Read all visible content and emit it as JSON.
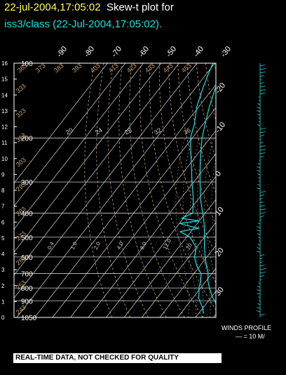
{
  "header": {
    "timestamp": "22-jul-2004,17:05:02",
    "plot_title": "Skew-t plot for",
    "subtitle": "iss3/class (22-Jul-2004,17:05:02)."
  },
  "winds": {
    "title": "WINDS PROFILE",
    "scale": "— = 10 M/"
  },
  "footer": {
    "quality_banner": "REAL-TIME DATA, NOT CHECKED FOR QUALITY"
  },
  "colors": {
    "trace": "#22dddd",
    "title_time": "#ffff55",
    "isobar": "#cccccc",
    "dry_adiabat": "#c8a070",
    "moist_adiabat": "#aaaaaa",
    "mixing_ratio": "#4488ff"
  },
  "chart_data": {
    "type": "line",
    "title": "",
    "pressure_levels_mb": [
      100,
      200,
      300,
      400,
      500,
      600,
      700,
      800,
      900,
      1050
    ],
    "pressure_tick_labels": [
      "100",
      "200",
      "300",
      "400",
      "500",
      "600",
      "700",
      "800",
      "900",
      "1050"
    ],
    "height_km_ticks": [
      "0",
      "1",
      "2",
      "3",
      "4",
      "5",
      "6",
      "7",
      "8",
      "9",
      "10",
      "11",
      "12",
      "13",
      "14",
      "15",
      "16"
    ],
    "temperature_top_labels": [
      "-90",
      "-80",
      "-70",
      "-60",
      "-50",
      "-40",
      "-30"
    ],
    "temperature_right_labels": [
      "-20",
      "-10",
      "0",
      "10",
      "20",
      "30"
    ],
    "mixing_ratio_labels": [
      "0.4",
      "1.0",
      "2.0",
      "4.0",
      "8.0",
      "12.0",
      "20"
    ],
    "dry_adiabat_labels": [
      "243",
      "253",
      "263",
      "273",
      "283",
      "293",
      "303",
      "313",
      "323",
      "333",
      "343",
      "353",
      "363",
      "373",
      "383",
      "393",
      "403",
      "413",
      "423",
      "433",
      "443",
      "453"
    ],
    "moist_adiabat_labels": [
      "20",
      "24",
      "28",
      "32",
      "36"
    ],
    "series": [
      {
        "name": "temperature",
        "pressure_mb": [
          1010,
          1000,
          975,
          950,
          925,
          900,
          875,
          850,
          800,
          750,
          700,
          650,
          600,
          550,
          500,
          450,
          400,
          350,
          300,
          250,
          200,
          175,
          150,
          125,
          110,
          100
        ],
        "temp_c": [
          31,
          30,
          28,
          27,
          25.5,
          23.5,
          21,
          19,
          15,
          11,
          8,
          3.5,
          -1,
          -5.5,
          -10,
          -15,
          -21.5,
          -29,
          -36.5,
          -45,
          -54.5,
          -59,
          -64,
          -69,
          -71,
          -69
        ]
      },
      {
        "name": "dewpoint",
        "pressure_mb": [
          1010,
          1000,
          975,
          950,
          925,
          900,
          875,
          850,
          800,
          750,
          700,
          650,
          600,
          550,
          500,
          475,
          460,
          450,
          440,
          430,
          420,
          400,
          350,
          300,
          250,
          200,
          175,
          150,
          125,
          110,
          100
        ],
        "temp_c": [
          23,
          22,
          20.5,
          19,
          17,
          15,
          13,
          12,
          9,
          7,
          4,
          -2,
          -7,
          -10,
          -18,
          -26,
          -17,
          -24,
          -30,
          -20,
          -31,
          -27,
          -33,
          -41,
          -50,
          -61,
          -65,
          -71,
          -76,
          -79,
          -81
        ]
      }
    ]
  }
}
